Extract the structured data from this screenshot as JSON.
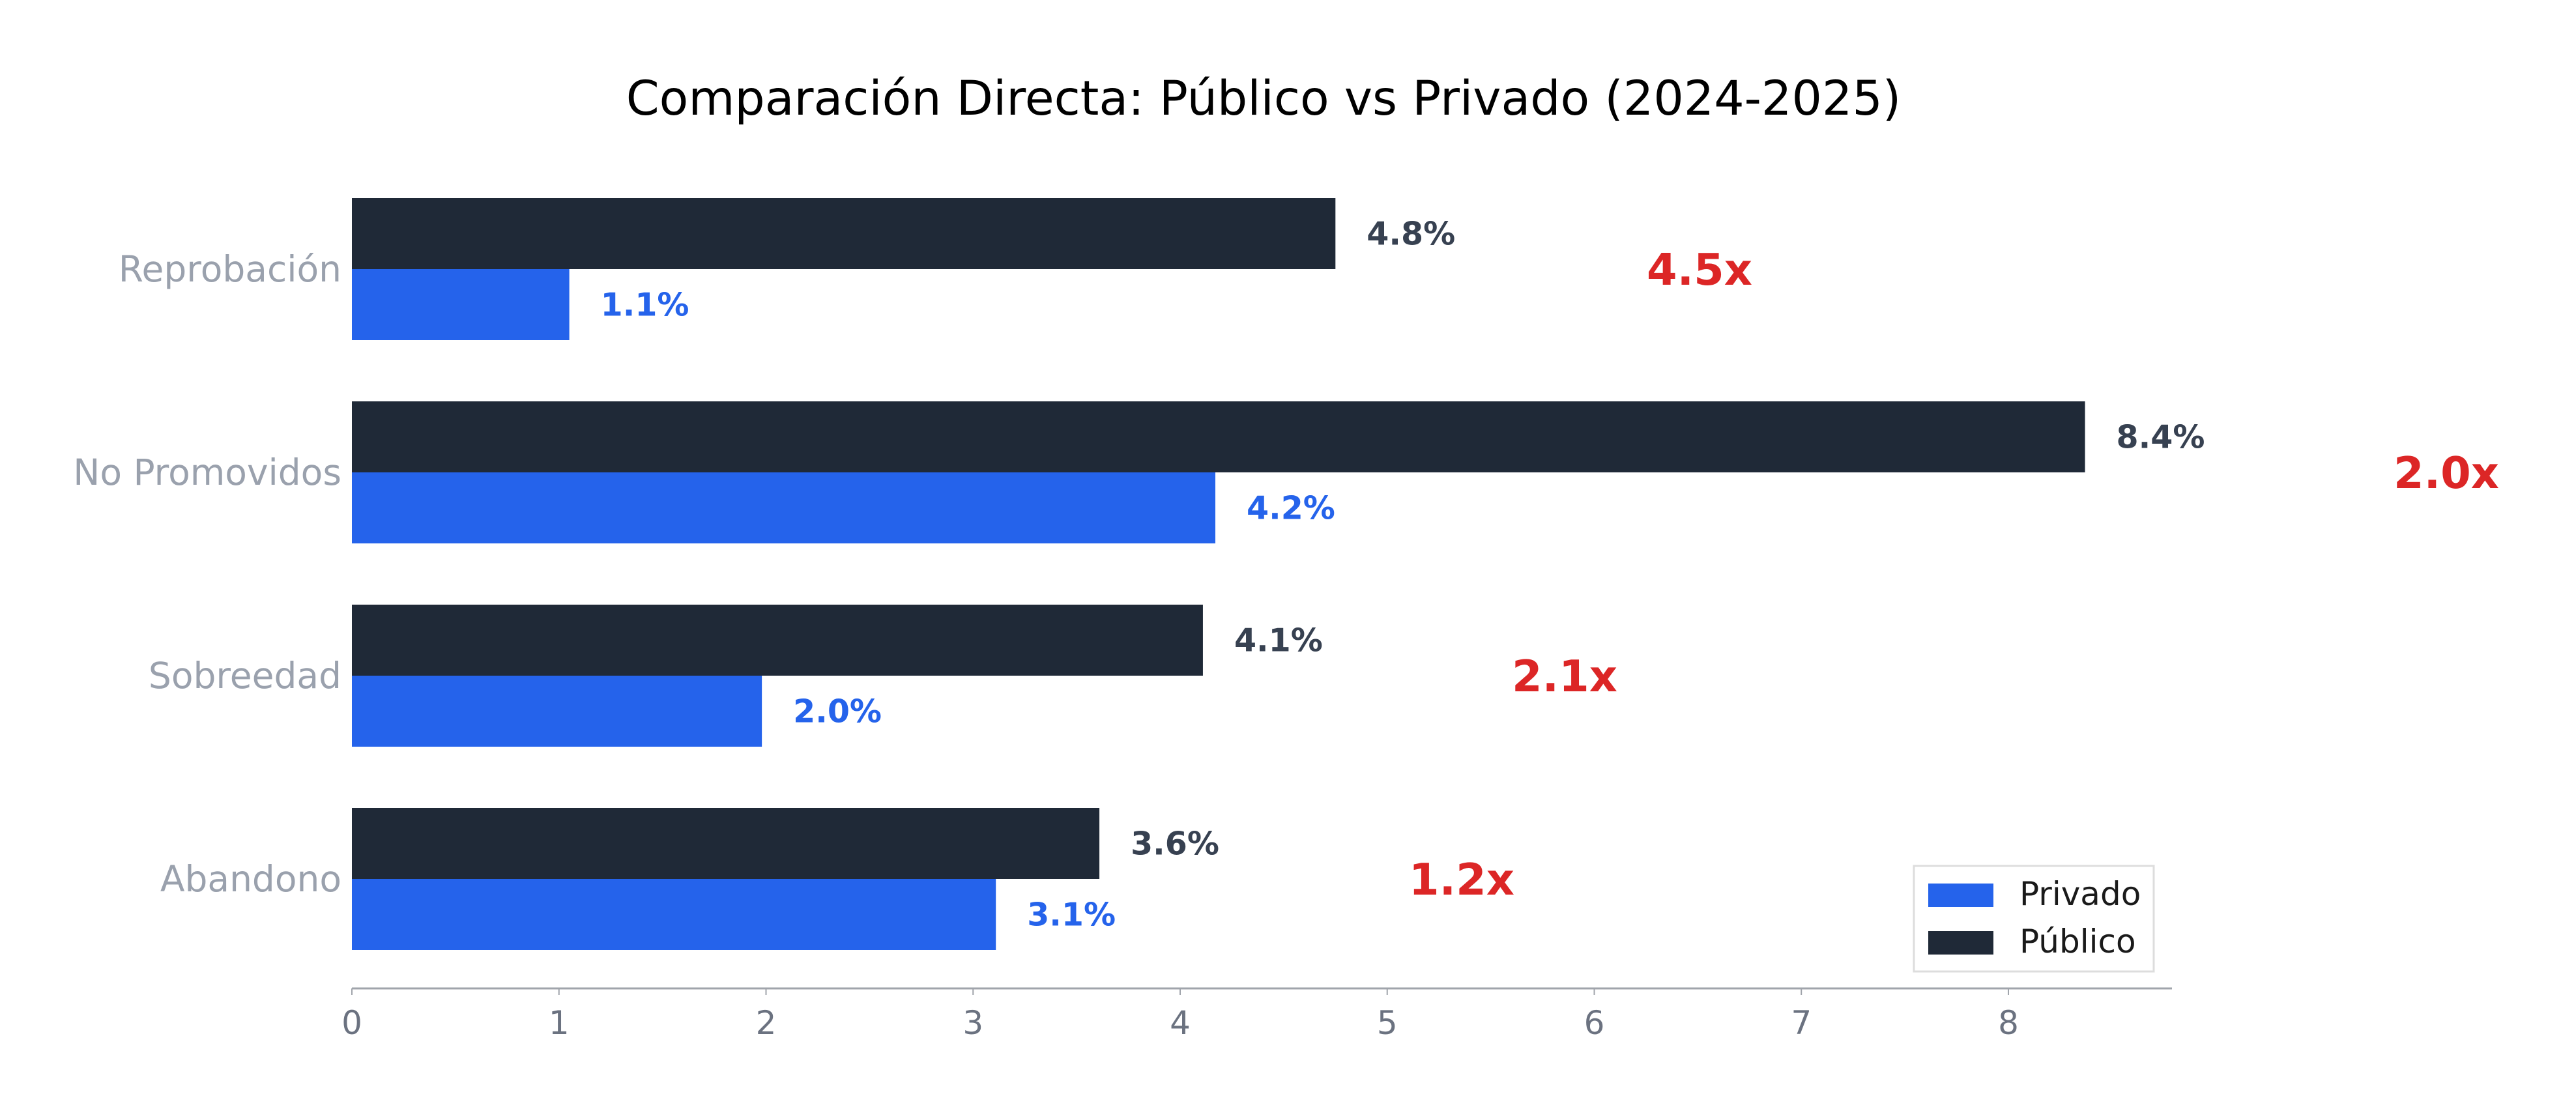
{
  "colors": {
    "privado": "#2563eb",
    "publico": "#1f2937",
    "publico_label": "#374151",
    "ratio": "#dc2626",
    "axis": "#a0a4ab",
    "category_text": "#9aa1ad",
    "tick_text": "#6b7280"
  },
  "chart_data": {
    "type": "bar",
    "orientation": "horizontal",
    "title": "Comparación Directa: Público vs Privado (2024-2025)",
    "xlabel": "",
    "ylabel": "",
    "categories": [
      "Reprobación",
      "No Promovidos",
      "Sobreedad",
      "Abandono"
    ],
    "series": [
      {
        "name": "Público",
        "values": [
          4.75,
          8.37,
          4.11,
          3.61
        ],
        "labels": [
          "4.8%",
          "8.4%",
          "4.1%",
          "3.6%"
        ]
      },
      {
        "name": "Privado",
        "values": [
          1.05,
          4.17,
          1.98,
          3.11
        ],
        "labels": [
          "1.1%",
          "4.2%",
          "2.0%",
          "3.1%"
        ]
      }
    ],
    "ratios": [
      "4.5x",
      "2.0x",
      "2.1x",
      "1.2x"
    ],
    "xlim": [
      0,
      8.79
    ],
    "xticks": [
      0,
      1,
      2,
      3,
      4,
      5,
      6,
      7,
      8
    ],
    "grid": false,
    "legend": {
      "position": "bottom-right",
      "entries": [
        "Privado",
        "Público"
      ]
    }
  }
}
